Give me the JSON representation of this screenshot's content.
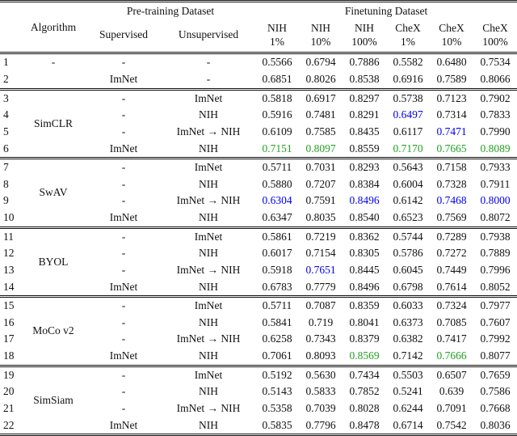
{
  "table": {
    "header": {
      "algorithm": "Algorithm",
      "pretraining": "Pre-training Dataset",
      "finetuning": "Finetuning Dataset",
      "supervised": "Supervised",
      "unsupervised": "Unsupervised",
      "finetune_cols": [
        {
          "dataset": "NIH",
          "pct": "1%"
        },
        {
          "dataset": "NIH",
          "pct": "10%"
        },
        {
          "dataset": "NIH",
          "pct": "100%"
        },
        {
          "dataset": "CheX",
          "pct": "1%"
        },
        {
          "dataset": "CheX",
          "pct": "10%"
        },
        {
          "dataset": "CheX",
          "pct": "100%"
        }
      ]
    },
    "colors": {
      "text": "#111111",
      "blue": "#0000ee",
      "green": "#22a122"
    },
    "groups": [
      {
        "algorithm": null,
        "rows": [
          {
            "num": "1",
            "algo": "-",
            "sup": "-",
            "unsup": "-",
            "vals": [
              {
                "v": "0.5566"
              },
              {
                "v": "0.6794"
              },
              {
                "v": "0.7886"
              },
              {
                "v": "0.5582"
              },
              {
                "v": "0.6480"
              },
              {
                "v": "0.7534"
              }
            ]
          },
          {
            "num": "2",
            "algo": "",
            "sup": "ImNet",
            "unsup": "-",
            "vals": [
              {
                "v": "0.6851"
              },
              {
                "v": "0.8026"
              },
              {
                "v": "0.8538"
              },
              {
                "v": "0.6916"
              },
              {
                "v": "0.7589"
              },
              {
                "v": "0.8066"
              }
            ]
          }
        ]
      },
      {
        "algorithm": "SimCLR",
        "rows": [
          {
            "num": "3",
            "sup": "-",
            "unsup": "ImNet",
            "vals": [
              {
                "v": "0.5818"
              },
              {
                "v": "0.6917"
              },
              {
                "v": "0.8297"
              },
              {
                "v": "0.5738"
              },
              {
                "v": "0.7123"
              },
              {
                "v": "0.7902"
              }
            ]
          },
          {
            "num": "4",
            "sup": "-",
            "unsup": "NIH",
            "vals": [
              {
                "v": "0.5916"
              },
              {
                "v": "0.7481"
              },
              {
                "v": "0.8291"
              },
              {
                "v": "0.6497",
                "c": "blue"
              },
              {
                "v": "0.7314"
              },
              {
                "v": "0.7833"
              }
            ]
          },
          {
            "num": "5",
            "sup": "-",
            "unsup": "ImNet → NIH",
            "vals": [
              {
                "v": "0.6109"
              },
              {
                "v": "0.7585"
              },
              {
                "v": "0.8435"
              },
              {
                "v": "0.6117"
              },
              {
                "v": "0.7471",
                "c": "blue"
              },
              {
                "v": "0.7990"
              }
            ]
          },
          {
            "num": "6",
            "sup": "ImNet",
            "unsup": "NIH",
            "vals": [
              {
                "v": "0.7151",
                "c": "green"
              },
              {
                "v": "0.8097",
                "c": "green"
              },
              {
                "v": "0.8559"
              },
              {
                "v": "0.7170",
                "c": "green"
              },
              {
                "v": "0.7665",
                "c": "green"
              },
              {
                "v": "0.8089",
                "c": "green"
              }
            ]
          }
        ]
      },
      {
        "algorithm": "SwAV",
        "rows": [
          {
            "num": "7",
            "sup": "-",
            "unsup": "ImNet",
            "vals": [
              {
                "v": "0.5711"
              },
              {
                "v": "0.7031"
              },
              {
                "v": "0.8293"
              },
              {
                "v": "0.5643"
              },
              {
                "v": "0.7158"
              },
              {
                "v": "0.7933"
              }
            ]
          },
          {
            "num": "8",
            "sup": "-",
            "unsup": "NIH",
            "vals": [
              {
                "v": "0.5880"
              },
              {
                "v": "0.7207"
              },
              {
                "v": "0.8384"
              },
              {
                "v": "0.6004"
              },
              {
                "v": "0.7328"
              },
              {
                "v": "0.7911"
              }
            ]
          },
          {
            "num": "9",
            "sup": "-",
            "unsup": "ImNet → NIH",
            "vals": [
              {
                "v": "0.6304",
                "c": "blue"
              },
              {
                "v": "0.7591"
              },
              {
                "v": "0.8496",
                "c": "blue"
              },
              {
                "v": "0.6142"
              },
              {
                "v": "0.7468",
                "c": "blue"
              },
              {
                "v": "0.8000",
                "c": "blue"
              }
            ]
          },
          {
            "num": "10",
            "sup": "ImNet",
            "unsup": "NIH",
            "vals": [
              {
                "v": "0.6347"
              },
              {
                "v": "0.8035"
              },
              {
                "v": "0.8540"
              },
              {
                "v": "0.6523"
              },
              {
                "v": "0.7569"
              },
              {
                "v": "0.8072"
              }
            ]
          }
        ]
      },
      {
        "algorithm": "BYOL",
        "rows": [
          {
            "num": "11",
            "sup": "-",
            "unsup": "ImNet",
            "vals": [
              {
                "v": "0.5861"
              },
              {
                "v": "0.7219"
              },
              {
                "v": "0.8362"
              },
              {
                "v": "0.5744"
              },
              {
                "v": "0.7289"
              },
              {
                "v": "0.7938"
              }
            ]
          },
          {
            "num": "12",
            "sup": "-",
            "unsup": "NIH",
            "vals": [
              {
                "v": "0.6017"
              },
              {
                "v": "0.7154"
              },
              {
                "v": "0.8305"
              },
              {
                "v": "0.5786"
              },
              {
                "v": "0.7272"
              },
              {
                "v": "0.7889"
              }
            ]
          },
          {
            "num": "13",
            "sup": "-",
            "unsup": "ImNet → NIH",
            "vals": [
              {
                "v": "0.5918"
              },
              {
                "v": "0.7651",
                "c": "blue"
              },
              {
                "v": "0.8445"
              },
              {
                "v": "0.6045"
              },
              {
                "v": "0.7449"
              },
              {
                "v": "0.7996"
              }
            ]
          },
          {
            "num": "14",
            "sup": "ImNet",
            "unsup": "NIH",
            "vals": [
              {
                "v": "0.6783"
              },
              {
                "v": "0.7779"
              },
              {
                "v": "0.8496"
              },
              {
                "v": "0.6798"
              },
              {
                "v": "0.7614"
              },
              {
                "v": "0.8052"
              }
            ]
          }
        ]
      },
      {
        "algorithm": "MoCo v2",
        "rows": [
          {
            "num": "15",
            "sup": "-",
            "unsup": "ImNet",
            "vals": [
              {
                "v": "0.5711"
              },
              {
                "v": "0.7087"
              },
              {
                "v": "0.8359"
              },
              {
                "v": "0.6033"
              },
              {
                "v": "0.7324"
              },
              {
                "v": "0.7977"
              }
            ]
          },
          {
            "num": "16",
            "sup": "-",
            "unsup": "NIH",
            "vals": [
              {
                "v": "0.5841"
              },
              {
                "v": "0.719"
              },
              {
                "v": "0.8041"
              },
              {
                "v": "0.6373"
              },
              {
                "v": "0.7085"
              },
              {
                "v": "0.7607"
              }
            ]
          },
          {
            "num": "17",
            "sup": "-",
            "unsup": "ImNet → NIH",
            "vals": [
              {
                "v": "0.6258"
              },
              {
                "v": "0.7343"
              },
              {
                "v": "0.8379"
              },
              {
                "v": "0.6382"
              },
              {
                "v": "0.7417"
              },
              {
                "v": "0.7992"
              }
            ]
          },
          {
            "num": "18",
            "sup": "ImNet",
            "unsup": "NIH",
            "vals": [
              {
                "v": "0.7061"
              },
              {
                "v": "0.8093"
              },
              {
                "v": "0.8569",
                "c": "green"
              },
              {
                "v": "0.7142"
              },
              {
                "v": "0.7666",
                "c": "green"
              },
              {
                "v": "0.8077"
              }
            ]
          }
        ]
      },
      {
        "algorithm": "SimSiam",
        "rows": [
          {
            "num": "19",
            "sup": "-",
            "unsup": "ImNet",
            "vals": [
              {
                "v": "0.5192"
              },
              {
                "v": "0.5630"
              },
              {
                "v": "0.7434"
              },
              {
                "v": "0.5503"
              },
              {
                "v": "0.6507"
              },
              {
                "v": "0.7659"
              }
            ]
          },
          {
            "num": "20",
            "sup": "-",
            "unsup": "NIH",
            "vals": [
              {
                "v": "0.5143"
              },
              {
                "v": "0.5833"
              },
              {
                "v": "0.7852"
              },
              {
                "v": "0.5241"
              },
              {
                "v": "0.639"
              },
              {
                "v": "0.7586"
              }
            ]
          },
          {
            "num": "21",
            "sup": "-",
            "unsup": "ImNet → NIH",
            "vals": [
              {
                "v": "0.5358"
              },
              {
                "v": "0.7039"
              },
              {
                "v": "0.8028"
              },
              {
                "v": "0.6244"
              },
              {
                "v": "0.7091"
              },
              {
                "v": "0.7668"
              }
            ]
          },
          {
            "num": "22",
            "sup": "ImNet",
            "unsup": "NIH",
            "vals": [
              {
                "v": "0.5835"
              },
              {
                "v": "0.7796"
              },
              {
                "v": "0.8478"
              },
              {
                "v": "0.6714"
              },
              {
                "v": "0.7542"
              },
              {
                "v": "0.8036"
              }
            ]
          }
        ]
      }
    ]
  }
}
